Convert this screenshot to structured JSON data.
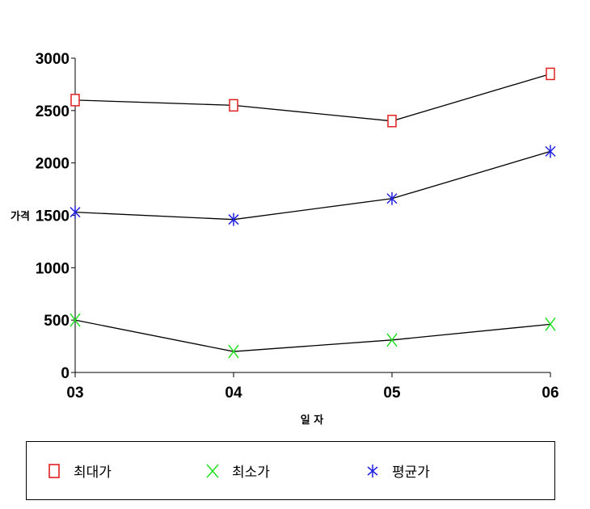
{
  "chart_data": {
    "type": "line",
    "categories": [
      "03",
      "04",
      "05",
      "06"
    ],
    "xlabel": "일 자",
    "ylabel": "가격",
    "ylim": [
      0,
      3000
    ],
    "yticks": [
      0,
      500,
      1000,
      1500,
      2000,
      2500,
      3000
    ],
    "grid": false,
    "legend_position": "bottom",
    "series": [
      {
        "name": "최대가",
        "values": [
          2600,
          2550,
          2400,
          2850
        ],
        "color": "#e02020",
        "marker": "square"
      },
      {
        "name": "최소가",
        "values": [
          500,
          200,
          310,
          460
        ],
        "color": "#20e020",
        "marker": "x"
      },
      {
        "name": "평균가",
        "values": [
          1530,
          1460,
          1660,
          2110
        ],
        "color": "#2020e0",
        "marker": "asterisk"
      }
    ],
    "line_color": "#000000"
  },
  "legend": {
    "items": [
      {
        "label": "최대가",
        "icon": "square-marker-icon"
      },
      {
        "label": "최소가",
        "icon": "x-marker-icon"
      },
      {
        "label": "평균가",
        "icon": "asterisk-marker-icon"
      }
    ]
  }
}
